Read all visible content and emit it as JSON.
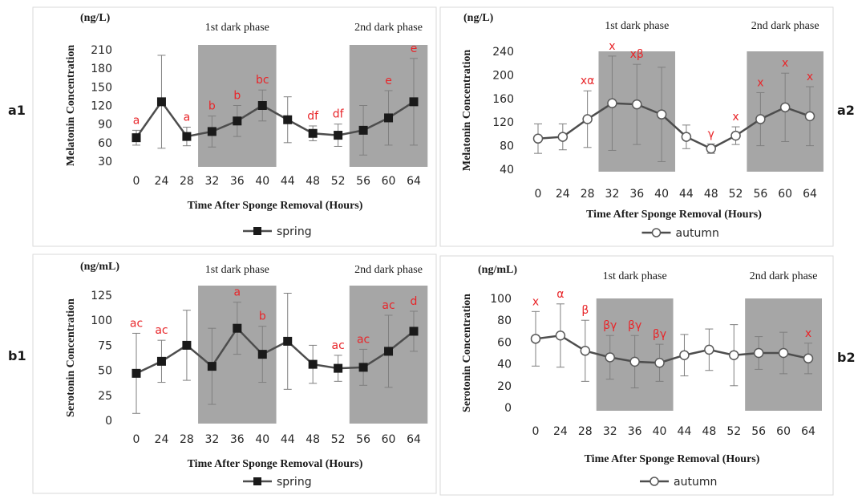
{
  "panel_labels": {
    "a1": "a1",
    "a2": "a2",
    "b1": "b1",
    "b2": "b2"
  },
  "chart_data": [
    {
      "id": "a1",
      "type": "line",
      "ylabel": "Melatonin Concentration",
      "unit": "(ng/L)",
      "xlabel": "Time After Sponge Removal (Hours)",
      "ylim": [
        30,
        210
      ],
      "yticks": [
        30,
        60,
        90,
        120,
        150,
        180,
        210
      ],
      "categories": [
        "0",
        "24",
        "28",
        "32",
        "36",
        "40",
        "44",
        "48",
        "52",
        "56",
        "60",
        "64"
      ],
      "phases": [
        {
          "label": "1st dark phase",
          "from": 3,
          "to": 5
        },
        {
          "label": "2nd dark phase",
          "from": 9,
          "to": 11
        }
      ],
      "series": [
        {
          "name": "spring",
          "marker": "square",
          "values": [
            68,
            126,
            70,
            78,
            95,
            120,
            97,
            75,
            72,
            80,
            100,
            126
          ],
          "err": [
            12,
            75,
            15,
            25,
            25,
            25,
            37,
            12,
            18,
            40,
            44,
            70
          ],
          "letters": [
            "a",
            "",
            "a",
            "b",
            "b",
            "bc",
            "",
            "df",
            "df",
            "",
            "e",
            "e"
          ]
        }
      ]
    },
    {
      "id": "a2",
      "type": "line",
      "ylabel": "Melatonin Concentration",
      "unit": "(ng/L)",
      "xlabel": "Time After Sponge Removal (Hours)",
      "ylim": [
        40,
        240
      ],
      "yticks": [
        40,
        80,
        120,
        160,
        200,
        240
      ],
      "categories": [
        "0",
        "24",
        "28",
        "32",
        "36",
        "40",
        "44",
        "48",
        "52",
        "56",
        "60",
        "64"
      ],
      "phases": [
        {
          "label": "1st dark phase",
          "from": 3,
          "to": 5
        },
        {
          "label": "2nd dark phase",
          "from": 9,
          "to": 11
        }
      ],
      "series": [
        {
          "name": "autumn",
          "marker": "circle",
          "values": [
            92,
            95,
            125,
            152,
            150,
            133,
            95,
            75,
            97,
            125,
            145,
            130
          ],
          "err": [
            25,
            22,
            48,
            80,
            68,
            80,
            20,
            8,
            15,
            45,
            58,
            50
          ],
          "letters": [
            "",
            "",
            "xα",
            "x",
            "xβ",
            "",
            "",
            "γ",
            "x",
            "x",
            "x",
            "x"
          ]
        }
      ]
    },
    {
      "id": "b1",
      "type": "line",
      "ylabel": "Serotonin Concentration",
      "unit": "(ng/mL)",
      "xlabel": "Time After Sponge Removal (Hours)",
      "ylim": [
        0,
        125
      ],
      "yticks": [
        0,
        25,
        50,
        75,
        100,
        125
      ],
      "categories": [
        "0",
        "24",
        "28",
        "32",
        "36",
        "40",
        "44",
        "48",
        "52",
        "56",
        "60",
        "64"
      ],
      "phases": [
        {
          "label": "1st dark phase",
          "from": 3,
          "to": 5
        },
        {
          "label": "2nd dark phase",
          "from": 9,
          "to": 11
        }
      ],
      "series": [
        {
          "name": "spring",
          "marker": "square",
          "values": [
            47,
            59,
            75,
            54,
            92,
            66,
            79,
            56,
            52,
            53,
            69,
            89
          ],
          "err": [
            40,
            21,
            35,
            38,
            26,
            28,
            48,
            19,
            13,
            18,
            36,
            20
          ],
          "letters": [
            "ac",
            "ac",
            "",
            "",
            "a",
            "b",
            "",
            "",
            "ac",
            "ac",
            "ac",
            "d"
          ]
        }
      ]
    },
    {
      "id": "b2",
      "type": "line",
      "ylabel": "Serotonin Concentration",
      "unit": "(ng/mL)",
      "xlabel": "Time After Sponge Removal (Hours)",
      "ylim": [
        0,
        100
      ],
      "yticks": [
        0,
        20,
        40,
        60,
        80,
        100
      ],
      "categories": [
        "0",
        "24",
        "28",
        "32",
        "36",
        "40",
        "44",
        "48",
        "52",
        "56",
        "60",
        "64"
      ],
      "phases": [
        {
          "label": "1st dark phase",
          "from": 3,
          "to": 5
        },
        {
          "label": "2nd dark phase",
          "from": 9,
          "to": 11
        }
      ],
      "series": [
        {
          "name": "autumn",
          "marker": "circle",
          "values": [
            63,
            66,
            52,
            46,
            42,
            41,
            48,
            53,
            48,
            50,
            50,
            45
          ],
          "err": [
            25,
            29,
            28,
            20,
            24,
            17,
            19,
            19,
            28,
            15,
            19,
            14
          ],
          "letters": [
            "x",
            "α",
            "β",
            "βγ",
            "βγ",
            "βγ",
            "",
            "",
            "",
            "",
            "",
            "x"
          ]
        }
      ]
    }
  ],
  "colors": {
    "shade": "#a6a6a6",
    "line": "#4d4d4d",
    "letters": "#e8262a",
    "axis_text": "#262626",
    "frame": "#d9d9d9"
  }
}
